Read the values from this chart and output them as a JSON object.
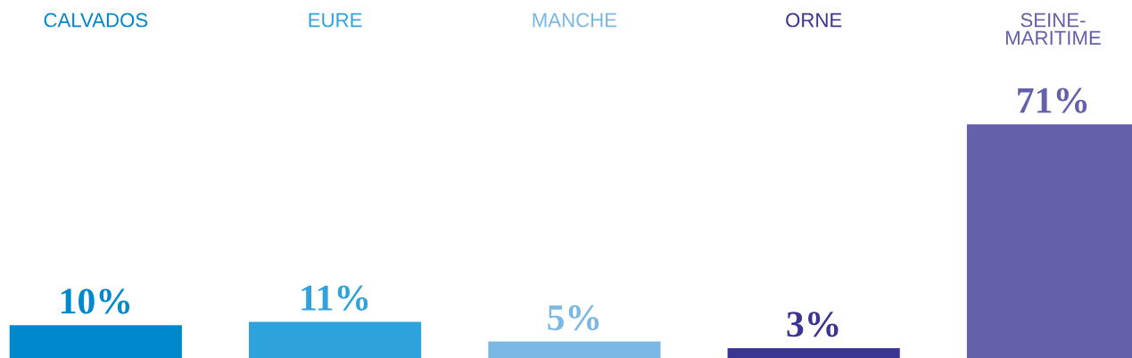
{
  "chart_data": {
    "type": "bar",
    "categories": [
      "CALVADOS",
      "EURE",
      "MANCHE",
      "ORNE",
      "SEINE-MARITIME"
    ],
    "values": [
      10,
      11,
      5,
      3,
      71
    ],
    "value_labels": [
      "10%",
      "11%",
      "5%",
      "3%",
      "71%"
    ],
    "colors": [
      "#0088cc",
      "#2ea3db",
      "#7ab8e3",
      "#3a3592",
      "#6460aa"
    ]
  }
}
